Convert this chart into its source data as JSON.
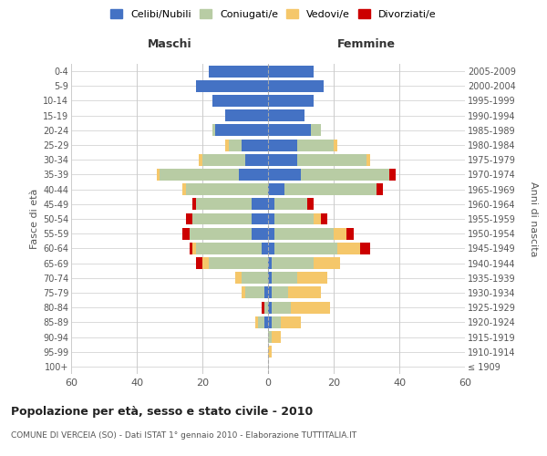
{
  "age_groups": [
    "100+",
    "95-99",
    "90-94",
    "85-89",
    "80-84",
    "75-79",
    "70-74",
    "65-69",
    "60-64",
    "55-59",
    "50-54",
    "45-49",
    "40-44",
    "35-39",
    "30-34",
    "25-29",
    "20-24",
    "15-19",
    "10-14",
    "5-9",
    "0-4"
  ],
  "birth_years": [
    "≤ 1909",
    "1910-1914",
    "1915-1919",
    "1920-1924",
    "1925-1929",
    "1930-1934",
    "1935-1939",
    "1940-1944",
    "1945-1949",
    "1950-1954",
    "1955-1959",
    "1960-1964",
    "1965-1969",
    "1970-1974",
    "1975-1979",
    "1980-1984",
    "1985-1989",
    "1990-1994",
    "1995-1999",
    "2000-2004",
    "2005-2009"
  ],
  "maschi_celibe": [
    0,
    0,
    0,
    1,
    0,
    1,
    0,
    0,
    2,
    5,
    5,
    5,
    0,
    9,
    7,
    8,
    16,
    13,
    17,
    22,
    18
  ],
  "maschi_coniugato": [
    0,
    0,
    0,
    2,
    1,
    6,
    8,
    18,
    20,
    19,
    18,
    17,
    25,
    24,
    13,
    4,
    1,
    0,
    0,
    0,
    0
  ],
  "maschi_vedovo": [
    0,
    0,
    0,
    1,
    0,
    1,
    2,
    2,
    1,
    0,
    0,
    0,
    1,
    1,
    1,
    1,
    0,
    0,
    0,
    0,
    0
  ],
  "maschi_divorziato": [
    0,
    0,
    0,
    0,
    1,
    0,
    0,
    2,
    1,
    2,
    2,
    1,
    0,
    0,
    0,
    0,
    0,
    0,
    0,
    0,
    0
  ],
  "femmine_celibe": [
    0,
    0,
    0,
    1,
    1,
    1,
    1,
    1,
    2,
    2,
    2,
    2,
    5,
    10,
    9,
    9,
    13,
    11,
    14,
    17,
    14
  ],
  "femmine_coniugato": [
    0,
    0,
    1,
    3,
    6,
    5,
    8,
    13,
    19,
    18,
    12,
    10,
    28,
    27,
    21,
    11,
    3,
    0,
    0,
    0,
    0
  ],
  "femmine_vedovo": [
    0,
    1,
    3,
    6,
    12,
    10,
    9,
    8,
    7,
    4,
    2,
    0,
    0,
    0,
    1,
    1,
    0,
    0,
    0,
    0,
    0
  ],
  "femmine_divorziato": [
    0,
    0,
    0,
    0,
    0,
    0,
    0,
    0,
    3,
    2,
    2,
    2,
    2,
    2,
    0,
    0,
    0,
    0,
    0,
    0,
    0
  ],
  "color_celibe": "#4472c4",
  "color_coniugato": "#b8cca4",
  "color_vedovo": "#f5c76a",
  "color_divorziato": "#cc0000",
  "title": "Popolazione per età, sesso e stato civile - 2010",
  "subtitle": "COMUNE DI VERCEIA (SO) - Dati ISTAT 1° gennaio 2010 - Elaborazione TUTTITALIA.IT",
  "xlabel_left": "Maschi",
  "xlabel_right": "Femmine",
  "ylabel_left": "Fasce di età",
  "ylabel_right": "Anni di nascita",
  "xlim": 60,
  "background_color": "#ffffff",
  "grid_color": "#cccccc",
  "legend_labels": [
    "Celibi/Nubili",
    "Coniugati/e",
    "Vedovi/e",
    "Divorziati/e"
  ]
}
